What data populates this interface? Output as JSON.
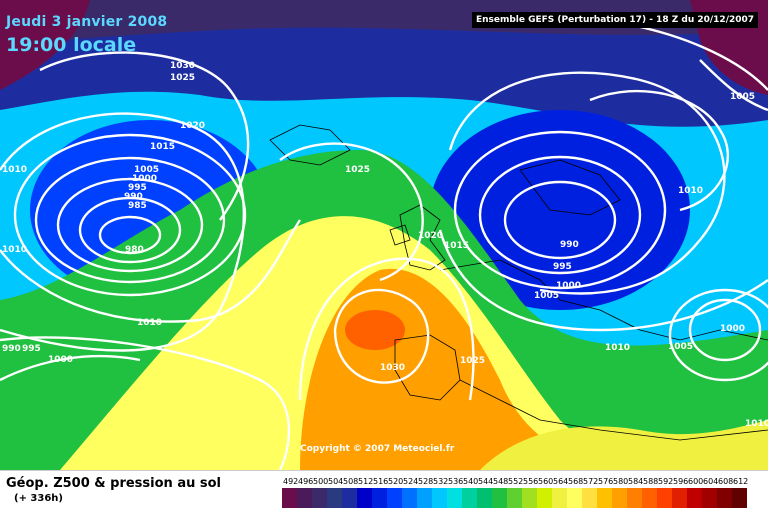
{
  "header": {
    "date": "Jeudi 3 janvier 2008",
    "time": "19:00 locale",
    "ensemble": "Ensemble GEFS (Perturbation 17)  -  18 Z du 20/12/2007"
  },
  "copyright": "Copyright © 2007 Meteociel.fr",
  "footer": {
    "title": "Géop. Z500 & pression au sol",
    "lead": "(+ 336h)"
  },
  "legend": {
    "levels": [
      "492",
      "496",
      "500",
      "504",
      "508",
      "512",
      "516",
      "520",
      "524",
      "528",
      "532",
      "536",
      "540",
      "544",
      "548",
      "552",
      "556",
      "560",
      "564",
      "568",
      "572",
      "576",
      "580",
      "584",
      "588",
      "592",
      "596",
      "600",
      "604",
      "608",
      "612"
    ],
    "colors": [
      "#6a0d4a",
      "#4a1a5a",
      "#3a2a6a",
      "#2a3a80",
      "#1d2da0",
      "#0000c8",
      "#0020e0",
      "#0040ff",
      "#0070ff",
      "#00a0ff",
      "#00c8ff",
      "#00e0e0",
      "#00d0a0",
      "#00c070",
      "#20c040",
      "#60d030",
      "#a0e020",
      "#d0f000",
      "#f0f040",
      "#ffff60",
      "#ffe040",
      "#ffc000",
      "#ffa000",
      "#ff8000",
      "#ff6000",
      "#ff4000",
      "#e02000",
      "#c00000",
      "#a00000",
      "#800000",
      "#600000"
    ]
  },
  "isobars": [
    {
      "text": "1030"
    },
    {
      "text": "1025"
    },
    {
      "text": "1020"
    },
    {
      "text": "1015"
    },
    {
      "text": "1005"
    },
    {
      "text": "1000"
    },
    {
      "text": "995"
    },
    {
      "text": "990"
    },
    {
      "text": "985"
    },
    {
      "text": "980"
    },
    {
      "text": "1010"
    },
    {
      "text": "1010"
    },
    {
      "text": "1010"
    },
    {
      "text": "1025"
    },
    {
      "text": "1020"
    },
    {
      "text": "1015"
    },
    {
      "text": "990"
    },
    {
      "text": "995"
    },
    {
      "text": "1000"
    },
    {
      "text": "1005"
    },
    {
      "text": "1010"
    },
    {
      "text": "1005"
    },
    {
      "text": "1010"
    },
    {
      "text": "1030"
    },
    {
      "text": "1025"
    },
    {
      "text": "1000"
    },
    {
      "text": "1005"
    },
    {
      "text": "1010"
    },
    {
      "text": "990"
    },
    {
      "text": "995"
    },
    {
      "text": "1000"
    }
  ]
}
